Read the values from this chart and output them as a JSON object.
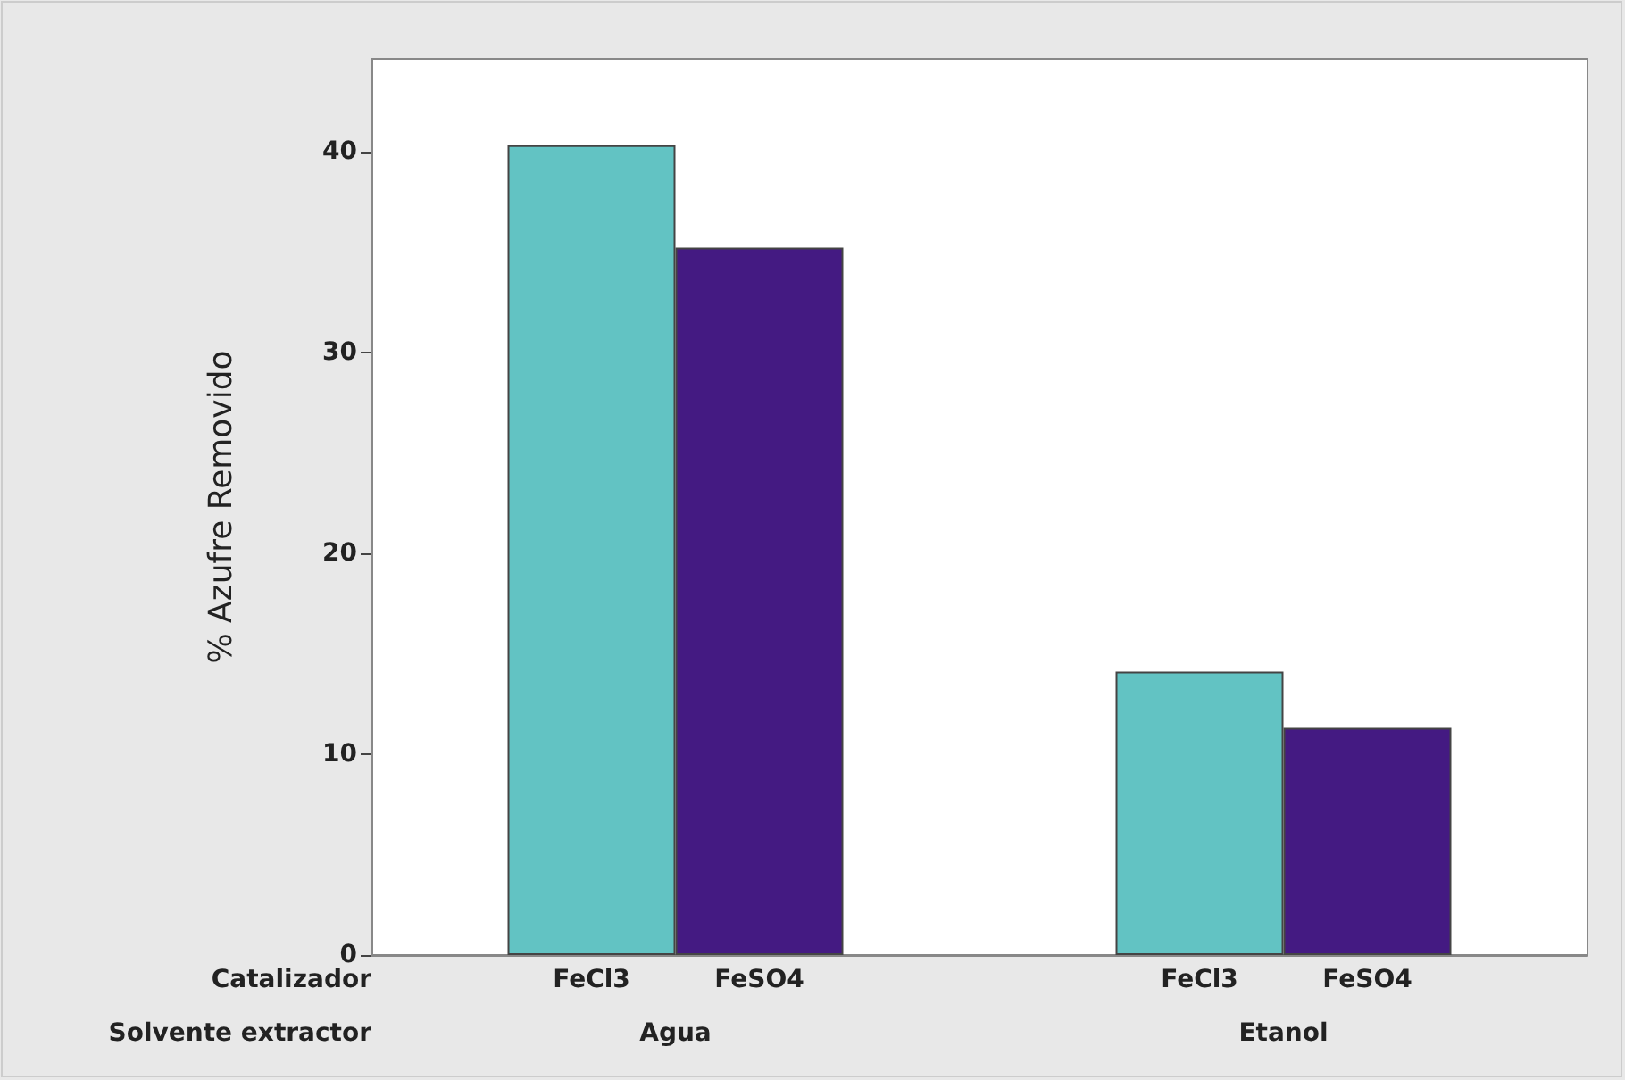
{
  "chart_data": {
    "type": "bar",
    "ylabel": "% Azufre Removido",
    "xlabel": "Solvente extractor",
    "legend_title": "Catalizador",
    "categories": [
      "Agua",
      "Etanol"
    ],
    "series": [
      {
        "name": "FeCl3",
        "color": "#62c3c3",
        "values": [
          40.3,
          14.1
        ]
      },
      {
        "name": "FeSO4",
        "color": "#441a82",
        "values": [
          35.2,
          11.3
        ]
      }
    ],
    "ylim": [
      0,
      44.6
    ],
    "yticks": [
      0,
      10,
      20,
      30,
      40
    ],
    "grid": false,
    "legend": false
  }
}
